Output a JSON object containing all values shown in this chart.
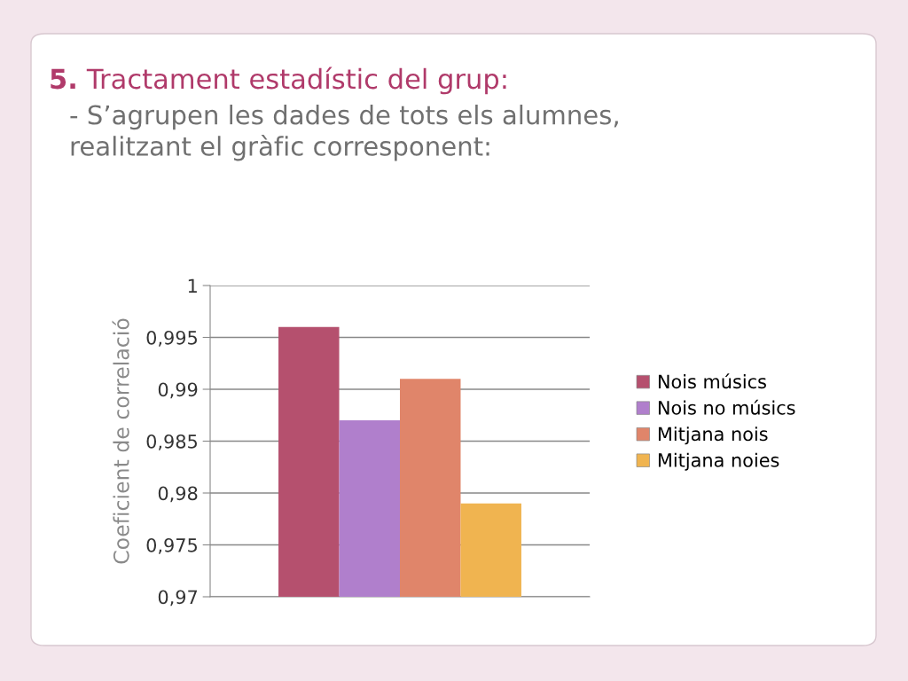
{
  "chart_data": {
    "type": "bar",
    "title": "5. Tractament estadístic del grup:",
    "subtitle": "- S’agrupen les dades de tots els alumnes,\nrealitzant el gràfic corresponent:",
    "ylabel": "Coeficient de correlació",
    "categories": [
      null
    ],
    "series": [
      {
        "name": "Nois músics",
        "color": "#b5506e",
        "values": [
          0.996
        ]
      },
      {
        "name": "Nois no músics",
        "color": "#b07fcc",
        "values": [
          0.987
        ]
      },
      {
        "name": "Mitjana nois",
        "color": "#e0856a",
        "values": [
          0.991
        ]
      },
      {
        "name": "Mitjana noies",
        "color": "#f0b450",
        "values": [
          0.979
        ]
      }
    ],
    "ylim": [
      0.97,
      1
    ],
    "yticks": [
      {
        "value": 0.97,
        "label": "0,97"
      },
      {
        "value": 0.975,
        "label": "0,975"
      },
      {
        "value": 0.98,
        "label": "0,98"
      },
      {
        "value": 0.985,
        "label": "0,985"
      },
      {
        "value": 0.99,
        "label": "0,99"
      },
      {
        "value": 0.995,
        "label": "0,995"
      },
      1
    ],
    "grid": "y",
    "legend": "right"
  }
}
